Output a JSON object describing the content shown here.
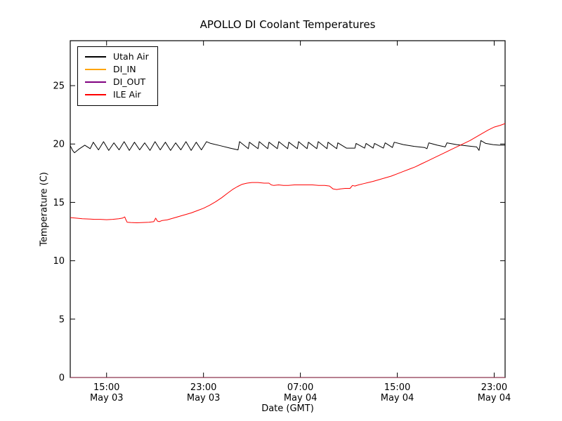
{
  "chart_data": {
    "type": "line",
    "title": "APOLLO DI Coolant Temperatures",
    "xlabel": "Date (GMT)",
    "ylabel": "Temperature (C)",
    "x_unit": "hours since May 03 12:00 GMT",
    "xlim": [
      0,
      35.9
    ],
    "ylim": [
      0,
      28.85
    ],
    "grid": false,
    "legend_position": "upper left",
    "yticks": [
      0,
      5,
      10,
      15,
      20,
      25
    ],
    "xticks": [
      {
        "t": 3,
        "time": "15:00",
        "date": "May 03"
      },
      {
        "t": 11,
        "time": "23:00",
        "date": "May 03"
      },
      {
        "t": 19,
        "time": "07:00",
        "date": "May 04"
      },
      {
        "t": 27,
        "time": "15:00",
        "date": "May 04"
      },
      {
        "t": 35,
        "time": "23:00",
        "date": "May 04"
      }
    ],
    "series": [
      {
        "name": "Utah Air",
        "color": "#000000",
        "opacity": 1,
        "points": [
          [
            0,
            19.85
          ],
          [
            0.2,
            19.45
          ],
          [
            0.35,
            19.25
          ],
          [
            0.7,
            19.55
          ],
          [
            1.2,
            19.9
          ],
          [
            1.65,
            19.6
          ],
          [
            1.9,
            20.15
          ],
          [
            2.33,
            19.5
          ],
          [
            2.75,
            20.2
          ],
          [
            3.18,
            19.45
          ],
          [
            3.6,
            20.1
          ],
          [
            4.03,
            19.5
          ],
          [
            4.45,
            20.2
          ],
          [
            4.88,
            19.45
          ],
          [
            5.3,
            20.15
          ],
          [
            5.73,
            19.5
          ],
          [
            6.15,
            20.1
          ],
          [
            6.58,
            19.45
          ],
          [
            7.0,
            20.2
          ],
          [
            7.43,
            19.5
          ],
          [
            7.85,
            20.15
          ],
          [
            8.28,
            19.45
          ],
          [
            8.7,
            20.1
          ],
          [
            9.13,
            19.5
          ],
          [
            9.55,
            20.2
          ],
          [
            9.98,
            19.45
          ],
          [
            10.4,
            20.15
          ],
          [
            10.83,
            19.5
          ],
          [
            11.25,
            20.2
          ],
          [
            11.6,
            20.05
          ],
          [
            12.4,
            19.85
          ],
          [
            13.2,
            19.65
          ],
          [
            13.85,
            19.5
          ],
          [
            13.98,
            20.2
          ],
          [
            14.7,
            19.6
          ],
          [
            14.79,
            20.15
          ],
          [
            15.5,
            19.6
          ],
          [
            15.6,
            20.2
          ],
          [
            16.3,
            19.6
          ],
          [
            16.41,
            20.15
          ],
          [
            17.1,
            19.6
          ],
          [
            17.22,
            20.2
          ],
          [
            17.95,
            19.6
          ],
          [
            18.04,
            20.15
          ],
          [
            18.75,
            19.6
          ],
          [
            18.85,
            20.2
          ],
          [
            19.55,
            19.6
          ],
          [
            19.66,
            20.15
          ],
          [
            20.35,
            19.6
          ],
          [
            20.47,
            20.2
          ],
          [
            21.2,
            19.6
          ],
          [
            21.28,
            20.15
          ],
          [
            22.0,
            19.6
          ],
          [
            22.09,
            20.1
          ],
          [
            22.8,
            19.65
          ],
          [
            23.5,
            19.65
          ],
          [
            23.6,
            20.05
          ],
          [
            24.3,
            19.65
          ],
          [
            24.42,
            20.05
          ],
          [
            25.0,
            19.65
          ],
          [
            25.12,
            20.05
          ],
          [
            25.85,
            19.65
          ],
          [
            26.0,
            20.1
          ],
          [
            26.6,
            19.7
          ],
          [
            26.75,
            20.15
          ],
          [
            27.5,
            19.95
          ],
          [
            28.4,
            19.8
          ],
          [
            29.25,
            19.7
          ],
          [
            29.45,
            19.6
          ],
          [
            29.6,
            20.1
          ],
          [
            30.3,
            19.9
          ],
          [
            30.95,
            19.75
          ],
          [
            31.1,
            20.1
          ],
          [
            31.9,
            19.95
          ],
          [
            32.7,
            19.85
          ],
          [
            33.55,
            19.75
          ],
          [
            33.75,
            19.45
          ],
          [
            33.9,
            20.3
          ],
          [
            34.3,
            20.05
          ],
          [
            34.9,
            19.95
          ],
          [
            35.4,
            19.9
          ],
          [
            35.9,
            19.9
          ]
        ]
      },
      {
        "name": "DI_IN",
        "color": "#ffa500",
        "opacity": 0.9,
        "points": [
          [
            0,
            0
          ],
          [
            35.9,
            0
          ]
        ]
      },
      {
        "name": "DI_OUT",
        "color": "#800080",
        "opacity": 0.65,
        "points": [
          [
            0,
            0
          ],
          [
            35.9,
            0
          ]
        ]
      },
      {
        "name": "ILE Air",
        "color": "#ff0000",
        "opacity": 1,
        "points": [
          [
            0,
            13.7
          ],
          [
            0.5,
            13.65
          ],
          [
            1,
            13.6
          ],
          [
            1.5,
            13.58
          ],
          [
            2,
            13.55
          ],
          [
            2.5,
            13.55
          ],
          [
            3,
            13.52
          ],
          [
            3.5,
            13.55
          ],
          [
            4,
            13.6
          ],
          [
            4.3,
            13.65
          ],
          [
            4.5,
            13.75
          ],
          [
            4.6,
            13.5
          ],
          [
            4.7,
            13.3
          ],
          [
            5,
            13.28
          ],
          [
            5.5,
            13.25
          ],
          [
            6,
            13.28
          ],
          [
            6.5,
            13.3
          ],
          [
            6.9,
            13.35
          ],
          [
            7.05,
            13.65
          ],
          [
            7.2,
            13.4
          ],
          [
            7.35,
            13.35
          ],
          [
            7.6,
            13.45
          ],
          [
            8,
            13.5
          ],
          [
            8.5,
            13.65
          ],
          [
            9,
            13.8
          ],
          [
            9.5,
            13.95
          ],
          [
            10,
            14.1
          ],
          [
            10.5,
            14.3
          ],
          [
            11,
            14.5
          ],
          [
            11.5,
            14.75
          ],
          [
            12,
            15.05
          ],
          [
            12.5,
            15.4
          ],
          [
            13,
            15.8
          ],
          [
            13.4,
            16.1
          ],
          [
            13.8,
            16.35
          ],
          [
            14.2,
            16.55
          ],
          [
            14.6,
            16.65
          ],
          [
            15,
            16.7
          ],
          [
            15.5,
            16.7
          ],
          [
            16,
            16.65
          ],
          [
            16.4,
            16.65
          ],
          [
            16.6,
            16.5
          ],
          [
            16.8,
            16.45
          ],
          [
            17.2,
            16.5
          ],
          [
            17.6,
            16.45
          ],
          [
            18,
            16.45
          ],
          [
            18.5,
            16.5
          ],
          [
            19,
            16.5
          ],
          [
            19.5,
            16.5
          ],
          [
            20,
            16.5
          ],
          [
            20.5,
            16.45
          ],
          [
            21,
            16.45
          ],
          [
            21.4,
            16.4
          ],
          [
            21.7,
            16.15
          ],
          [
            22,
            16.1
          ],
          [
            22.3,
            16.15
          ],
          [
            22.7,
            16.2
          ],
          [
            23.1,
            16.2
          ],
          [
            23.3,
            16.45
          ],
          [
            23.5,
            16.4
          ],
          [
            23.8,
            16.5
          ],
          [
            24.2,
            16.6
          ],
          [
            24.6,
            16.7
          ],
          [
            25,
            16.8
          ],
          [
            25.5,
            16.95
          ],
          [
            26,
            17.1
          ],
          [
            26.5,
            17.25
          ],
          [
            27,
            17.45
          ],
          [
            27.5,
            17.65
          ],
          [
            28,
            17.85
          ],
          [
            28.5,
            18.05
          ],
          [
            29,
            18.3
          ],
          [
            29.5,
            18.55
          ],
          [
            30,
            18.8
          ],
          [
            30.5,
            19.05
          ],
          [
            31,
            19.3
          ],
          [
            31.5,
            19.55
          ],
          [
            32,
            19.8
          ],
          [
            32.5,
            20.05
          ],
          [
            33,
            20.3
          ],
          [
            33.5,
            20.6
          ],
          [
            34,
            20.9
          ],
          [
            34.5,
            21.2
          ],
          [
            35,
            21.45
          ],
          [
            35.5,
            21.6
          ],
          [
            35.9,
            21.75
          ]
        ]
      }
    ]
  }
}
